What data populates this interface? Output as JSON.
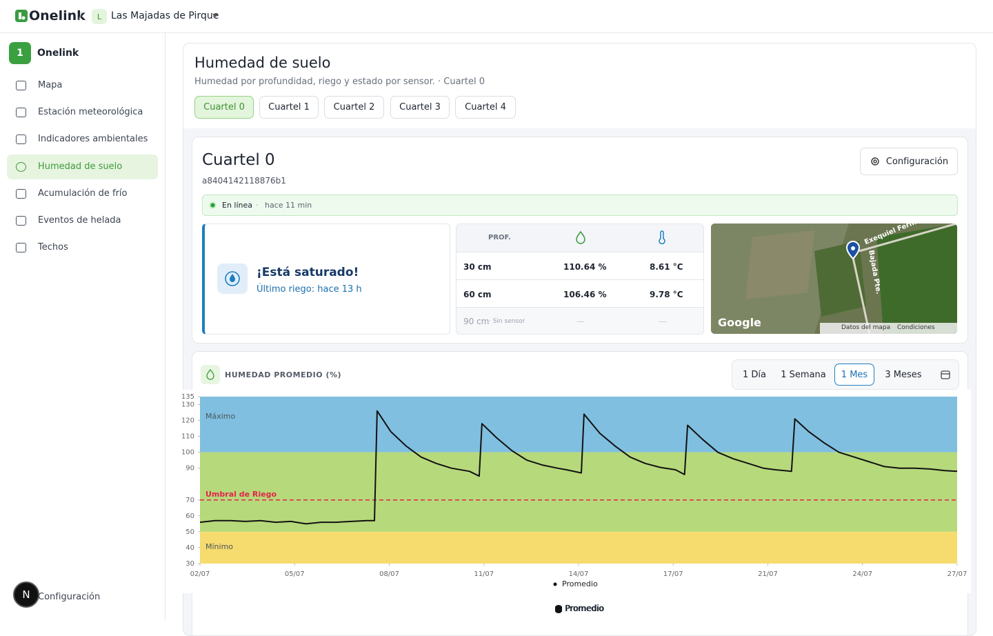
{
  "header": {
    "brand": "Onelink",
    "separator": "/",
    "org_initial": "L",
    "org_name": "Las Majadas de Pirque"
  },
  "sidebar": {
    "badge": "1",
    "title": "Onelink",
    "active": 3,
    "items": [
      "Mapa",
      "Estación meteorológica",
      "Indicadores ambientales",
      "Humedad de suelo",
      "Acumulación de frío",
      "Eventos de helada",
      "Techos"
    ],
    "avatar": "N",
    "footer": "Configuración"
  },
  "page": {
    "title": "Humedad de suelo",
    "subtitle": "Humedad por profundidad, riego y estado por sensor. · Cuartel 0",
    "tabs": [
      "Cuartel 0",
      "Cuartel 1",
      "Cuartel 2",
      "Cuartel 3",
      "Cuartel 4"
    ],
    "active_tab": 0
  },
  "sensor": {
    "name": "Cuartel 0",
    "id": "a8404142118876b1",
    "config_button": "Configuración",
    "status": "En línea",
    "status_sep": "·",
    "updated": "hace 11 min",
    "alert_title": "¡Está saturado!",
    "alert_subtitle": "Último riego: hace 13 h",
    "table": {
      "header": "PROF.",
      "rows": [
        [
          "30 cm",
          "110.64 %",
          "8.61 °C"
        ],
        [
          "60 cm",
          "106.46 %",
          "9.78 °C"
        ]
      ],
      "missing": {
        "depth": "90 cm",
        "note": "· Sin sensor",
        "dash": "—"
      }
    },
    "map": {
      "road1": "Exequiel Fern...",
      "road2": "Bajada Pte.",
      "brand": "Google",
      "data": "Datos del mapa",
      "terms": "Condiciones"
    }
  },
  "panel": {
    "title": "HUMEDAD PROMEDIO (%)",
    "ranges": [
      "1 Día",
      "1 Semana",
      "1 Mes",
      "3 Meses"
    ],
    "active_range": 2,
    "legend": "Promedio"
  },
  "chart_data": {
    "type": "line",
    "ylim": [
      30,
      135
    ],
    "yticks": [
      30,
      40,
      50,
      60,
      70,
      90,
      100,
      110,
      120,
      130,
      135
    ],
    "xlim": [
      2,
      27
    ],
    "xticks": [
      {
        "value": 2,
        "label": "02/07"
      },
      {
        "value": 5.125,
        "label": "05/07"
      },
      {
        "value": 8.25,
        "label": "08/07"
      },
      {
        "value": 11.375,
        "label": "11/07"
      },
      {
        "value": 14.5,
        "label": "14/07"
      },
      {
        "value": 17.625,
        "label": "17/07"
      },
      {
        "value": 20.75,
        "label": "21/07"
      },
      {
        "value": 23.875,
        "label": "24/07"
      },
      {
        "value": 27,
        "label": "27/07"
      }
    ],
    "bands": [
      {
        "name": "Máximo",
        "from": 100,
        "to": 135,
        "color": "#80bfdf"
      },
      {
        "from": 50,
        "to": 100,
        "color": "#b6d97b"
      },
      {
        "name": "Mínimo",
        "from": 30,
        "to": 50,
        "color": "#f6dc6e"
      }
    ],
    "threshold": {
      "label": "Umbral de Riego",
      "value": 70,
      "color": "#e0244a"
    },
    "x": [
      2,
      2.5,
      3,
      3.5,
      4,
      4.5,
      5,
      5.5,
      6,
      6.5,
      7,
      7.5,
      7.76,
      7.85,
      8.3,
      8.8,
      9.3,
      9.8,
      10.3,
      10.9,
      11.22,
      11.31,
      11.8,
      12.3,
      12.8,
      13.3,
      13.8,
      14.1,
      14.59,
      14.68,
      15.2,
      15.7,
      16.2,
      16.7,
      17.2,
      17.7,
      18.0,
      18.1,
      18.6,
      19.1,
      19.6,
      20.1,
      20.6,
      21.0,
      21.53,
      21.64,
      22.1,
      22.6,
      23.1,
      23.6,
      24.1,
      24.6,
      25.1,
      25.6,
      26.1,
      26.6,
      27
    ],
    "series": [
      {
        "name": "Promedio",
        "color": "#111111",
        "values": [
          56,
          57,
          57,
          56.5,
          57,
          56,
          56.5,
          55,
          56,
          56,
          56.5,
          57,
          57,
          126,
          113,
          104,
          97,
          93,
          90,
          88,
          85,
          118,
          109,
          101,
          95,
          92,
          90,
          89,
          87,
          124,
          112,
          104,
          97,
          93,
          90.5,
          89,
          86,
          117,
          108,
          100,
          96,
          93,
          90,
          89,
          88,
          121,
          113,
          106,
          100,
          97,
          94,
          91,
          90,
          90,
          89.5,
          88.5,
          88
        ]
      }
    ]
  }
}
